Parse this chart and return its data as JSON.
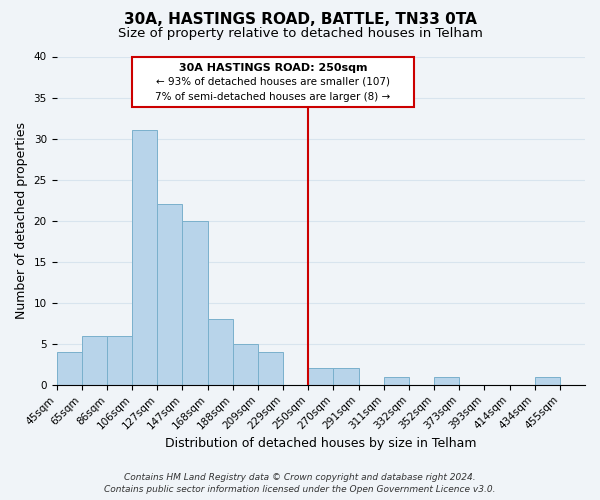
{
  "title": "30A, HASTINGS ROAD, BATTLE, TN33 0TA",
  "subtitle": "Size of property relative to detached houses in Telham",
  "xlabel": "Distribution of detached houses by size in Telham",
  "ylabel": "Number of detached properties",
  "bar_labels": [
    "45sqm",
    "65sqm",
    "86sqm",
    "106sqm",
    "127sqm",
    "147sqm",
    "168sqm",
    "188sqm",
    "209sqm",
    "229sqm",
    "250sqm",
    "270sqm",
    "291sqm",
    "311sqm",
    "332sqm",
    "352sqm",
    "373sqm",
    "393sqm",
    "414sqm",
    "434sqm",
    "455sqm"
  ],
  "bar_values": [
    4,
    6,
    6,
    31,
    22,
    20,
    8,
    5,
    4,
    0,
    2,
    2,
    0,
    1,
    0,
    1,
    0,
    0,
    0,
    1,
    0
  ],
  "bar_color": "#b8d4ea",
  "bar_edge_color": "#7ab0cc",
  "reference_line_x": 10,
  "reference_line_color": "#cc0000",
  "annotation_title": "30A HASTINGS ROAD: 250sqm",
  "annotation_line1": "← 93% of detached houses are smaller (107)",
  "annotation_line2": "7% of semi-detached houses are larger (8) →",
  "annotation_box_color": "#ffffff",
  "annotation_box_edge": "#cc0000",
  "ylim": [
    0,
    40
  ],
  "yticks": [
    0,
    5,
    10,
    15,
    20,
    25,
    30,
    35,
    40
  ],
  "footer_line1": "Contains HM Land Registry data © Crown copyright and database right 2024.",
  "footer_line2": "Contains public sector information licensed under the Open Government Licence v3.0.",
  "background_color": "#f0f4f8",
  "grid_color": "#d8e4ee",
  "title_fontsize": 11,
  "subtitle_fontsize": 9.5,
  "axis_label_fontsize": 9,
  "tick_fontsize": 7.5,
  "footer_fontsize": 6.5
}
